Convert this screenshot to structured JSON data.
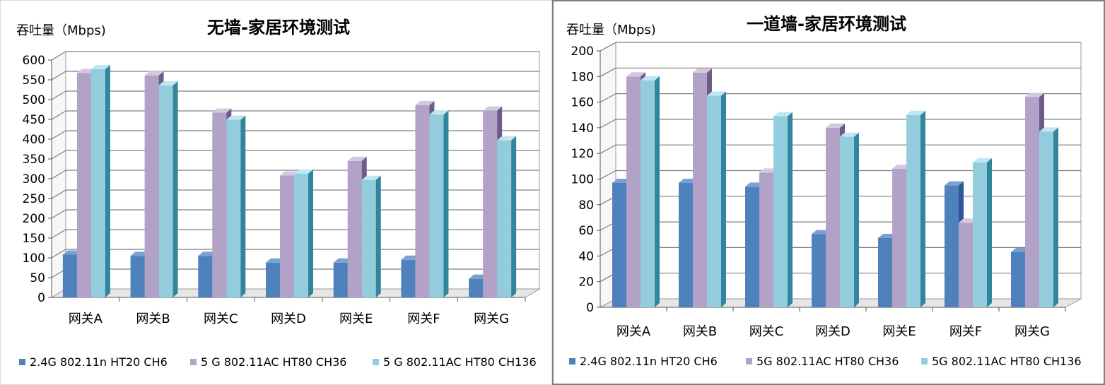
{
  "colors": {
    "series": [
      "#4f81bd",
      "#b3a2c7",
      "#93cddd"
    ],
    "side": [
      "#2f5597",
      "#6f5b8a",
      "#31859c"
    ],
    "top": [
      "#7ba0d4",
      "#d3c8e0",
      "#c0e6ef"
    ],
    "grid": "#7f7f7f"
  },
  "chart_data": [
    {
      "type": "bar",
      "title": "无墙-家居环境测试",
      "ylabel": "吞吐量（Mbps)",
      "xlabel": "",
      "categories": [
        "网关A",
        "网关B",
        "网关C",
        "网关D",
        "网关E",
        "网关F",
        "网关G"
      ],
      "ylim": [
        0,
        600
      ],
      "yticks": [
        0,
        50,
        100,
        150,
        200,
        250,
        300,
        350,
        400,
        450,
        500,
        550,
        600
      ],
      "series": [
        {
          "name": "2.4G 802.11n HT20 CH6",
          "values": [
            108,
            105,
            105,
            88,
            88,
            95,
            47
          ]
        },
        {
          "name": "5 G 802.11AC HT80 CH36",
          "values": [
            567,
            561,
            467,
            308,
            345,
            486,
            472
          ]
        },
        {
          "name": "5 G 802.11AC HT80 CH136",
          "values": [
            577,
            536,
            449,
            313,
            297,
            462,
            397
          ]
        }
      ],
      "legend": "bottom",
      "grid": true
    },
    {
      "type": "bar",
      "title": "一道墙-家居环境测试",
      "ylabel": "吞吐量（Mbps)",
      "xlabel": "",
      "categories": [
        "网关A",
        "网关B",
        "网关C",
        "网关D",
        "网关E",
        "网关F",
        "网关G"
      ],
      "ylim": [
        0,
        200
      ],
      "yticks": [
        0,
        20,
        40,
        60,
        80,
        100,
        120,
        140,
        160,
        180,
        200
      ],
      "series": [
        {
          "name": "2.4G 802.11n HT20 CH6",
          "values": [
            97,
            97,
            94,
            57,
            54,
            95,
            43
          ]
        },
        {
          "name": "5G 802.11AC HT80 CH36",
          "values": [
            180,
            183,
            105,
            140,
            108,
            66,
            164
          ]
        },
        {
          "name": "5G 802.11AC HT80 CH136",
          "values": [
            177,
            165,
            149,
            133,
            150,
            113,
            137
          ]
        }
      ],
      "legend": "bottom",
      "grid": true
    }
  ]
}
